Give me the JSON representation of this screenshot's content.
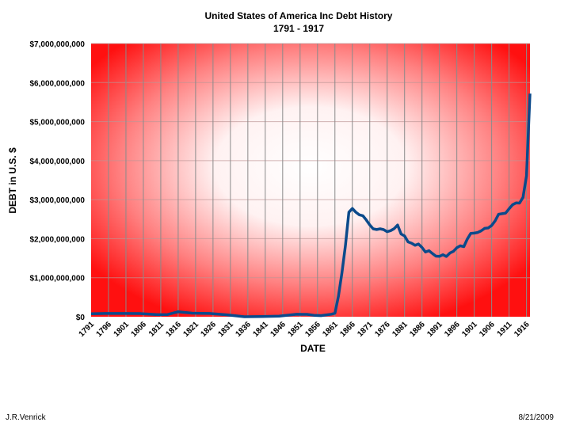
{
  "chart_data": {
    "type": "line",
    "title": "United States of America Inc Debt History",
    "subtitle": "1791 - 1917",
    "xlabel": "DATE",
    "ylabel": "DEBT in U.S. $",
    "xlim": [
      1791,
      1917
    ],
    "ylim": [
      0,
      7000000000
    ],
    "x_ticks": [
      "1791",
      "1796",
      "1801",
      "1806",
      "1811",
      "1816",
      "1821",
      "1826",
      "1831",
      "1836",
      "1841",
      "1846",
      "1851",
      "1856",
      "1861",
      "1866",
      "1871",
      "1876",
      "1881",
      "1886",
      "1891",
      "1896",
      "1901",
      "1906",
      "1911",
      "1916"
    ],
    "y_ticks": [
      "$0",
      "$1,000,000,000",
      "$2,000,000,000",
      "$3,000,000,000",
      "$4,000,000,000",
      "$5,000,000,000",
      "$6,000,000,000",
      "$7,000,000,000"
    ],
    "grid": true,
    "legend": "none",
    "series": [
      {
        "name": "Debt",
        "color": "#0b4a8b",
        "x": [
          1791,
          1795,
          1800,
          1805,
          1810,
          1813,
          1816,
          1820,
          1825,
          1830,
          1835,
          1840,
          1845,
          1850,
          1853,
          1855,
          1857,
          1860,
          1861,
          1862,
          1863,
          1864,
          1865,
          1866,
          1867,
          1868,
          1869,
          1870,
          1871,
          1872,
          1873,
          1874,
          1875,
          1876,
          1877,
          1878,
          1879,
          1880,
          1881,
          1882,
          1883,
          1884,
          1885,
          1886,
          1887,
          1888,
          1889,
          1890,
          1891,
          1892,
          1893,
          1894,
          1895,
          1896,
          1897,
          1898,
          1899,
          1900,
          1901,
          1902,
          1903,
          1904,
          1905,
          1906,
          1907,
          1908,
          1909,
          1910,
          1911,
          1912,
          1913,
          1914,
          1915,
          1916,
          1917
        ],
        "values": [
          75000000,
          84000000,
          83000000,
          82000000,
          53000000,
          56000000,
          127000000,
          91000000,
          84000000,
          48000000,
          30000,
          3500000,
          15000000,
          63000000,
          60000000,
          36000000,
          29000000,
          65000000,
          90000000,
          524000000,
          1120000000,
          1816000000,
          2678000000,
          2773000000,
          2678000000,
          2611000000,
          2588000000,
          2481000000,
          2353000000,
          2253000000,
          2234000000,
          2252000000,
          2232000000,
          2180000000,
          2206000000,
          2256000000,
          2349000000,
          2120000000,
          2069000000,
          1918000000,
          1884000000,
          1831000000,
          1863000000,
          1775000000,
          1658000000,
          1692000000,
          1619000000,
          1552000000,
          1546000000,
          1588000000,
          1545000000,
          1632000000,
          1676000000,
          1769000000,
          1817000000,
          1796000000,
          1991000000,
          2137000000,
          2143000000,
          2159000000,
          2202000000,
          2265000000,
          2274000000,
          2337000000,
          2457000000,
          2626000000,
          2640000000,
          2653000000,
          2765000000,
          2868000000,
          2916000000,
          2912000000,
          3058000000,
          3609000000,
          5718000000
        ]
      }
    ]
  },
  "footer": {
    "author": "J.R.Venrick",
    "date": "8/21/2009"
  }
}
